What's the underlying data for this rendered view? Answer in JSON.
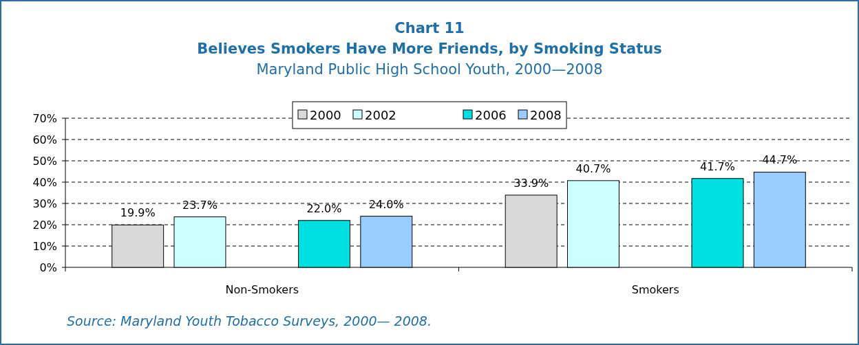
{
  "chart_data": {
    "type": "bar",
    "title": "Chart 11\nBelieves Smokers Have More Friends, by Smoking Status",
    "subtitle": "Maryland Public High School Youth, 2000—2008",
    "categories": [
      "Non-Smokers",
      "Smokers"
    ],
    "series": [
      {
        "name": "2000",
        "color": "#d9d9d9",
        "values": [
          19.9,
          33.9
        ],
        "value_labels": [
          "19.9%",
          "33.9%"
        ]
      },
      {
        "name": "2002",
        "color": "#ccffff",
        "values": [
          23.7,
          40.7
        ],
        "value_labels": [
          "23.7%",
          "40.7%"
        ]
      },
      {
        "values": [
          null,
          null
        ]
      },
      {
        "name": "2006",
        "color": "#00e0e0",
        "values": [
          22.0,
          41.7
        ],
        "value_labels": [
          "22.0%",
          "41.7%"
        ]
      },
      {
        "name": "2008",
        "color": "#99ccff",
        "values": [
          24.0,
          44.7
        ],
        "value_labels": [
          "24.0%",
          "44.7%"
        ]
      }
    ],
    "ylim": [
      0,
      70
    ],
    "yticks": [
      {
        "value": 0,
        "label": "0%"
      },
      {
        "value": 10,
        "label": "10%"
      },
      {
        "value": 20,
        "label": "20%"
      },
      {
        "value": 30,
        "label": "30%"
      },
      {
        "value": 40,
        "label": "40%"
      },
      {
        "value": 50,
        "label": "50%"
      },
      {
        "value": 60,
        "label": "60%"
      },
      {
        "value": 70,
        "label": "70%"
      }
    ],
    "grid": "y",
    "legend": "top",
    "annotations": [
      "Source: Maryland Youth Tobacco Surveys, 2000— 2008."
    ]
  }
}
